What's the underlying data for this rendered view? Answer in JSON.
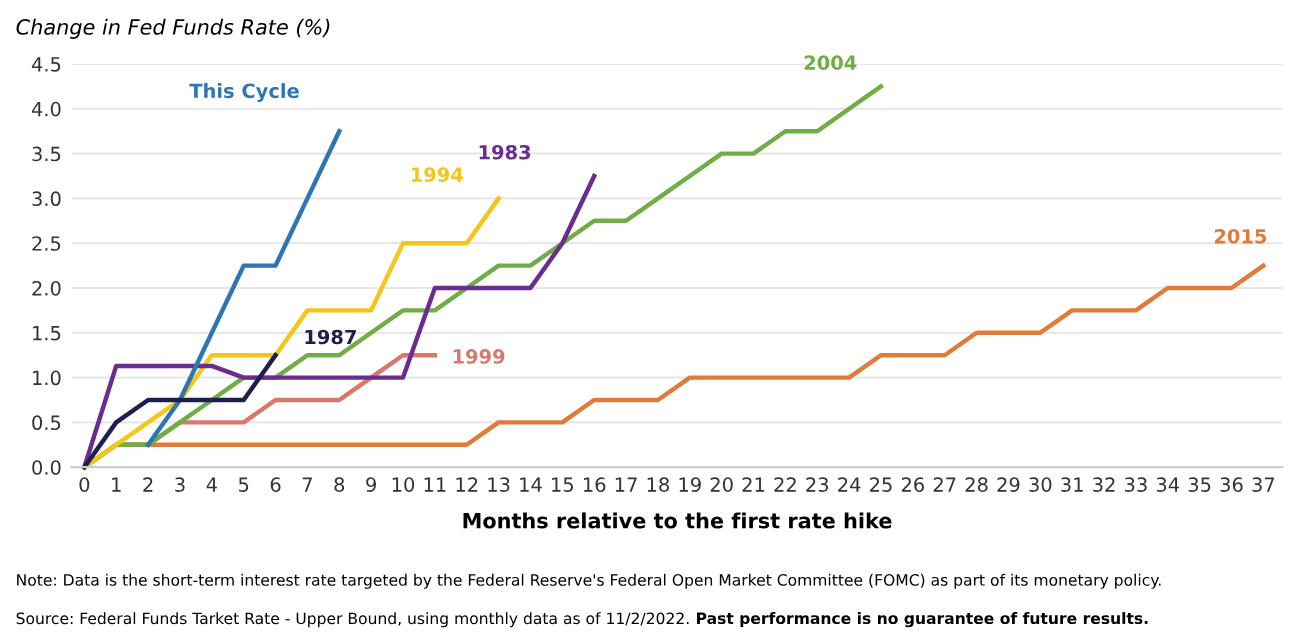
{
  "chart_data": {
    "type": "line",
    "ylabel": "Change in Fed Funds Rate (%)",
    "xlabel": "Months relative to the first rate hike",
    "xlim": [
      -0.4,
      37.6
    ],
    "ylim": [
      0,
      4.5
    ],
    "xticks": [
      0,
      1,
      2,
      3,
      4,
      5,
      6,
      7,
      8,
      9,
      10,
      11,
      12,
      13,
      14,
      15,
      16,
      17,
      18,
      19,
      20,
      21,
      22,
      23,
      24,
      25,
      26,
      27,
      28,
      29,
      30,
      31,
      32,
      33,
      34,
      35,
      36,
      37
    ],
    "yticks": [
      {
        "value": 0,
        "label": "0.0"
      },
      {
        "value": 0.5,
        "label": "0.5"
      },
      {
        "value": 1,
        "label": "1.0"
      },
      {
        "value": 1.5,
        "label": "1.5"
      },
      {
        "value": 2,
        "label": "2.0"
      },
      {
        "value": 2.5,
        "label": "2.5"
      },
      {
        "value": 3,
        "label": "3.0"
      },
      {
        "value": 3.5,
        "label": "3.5"
      },
      {
        "value": 4,
        "label": "4.0"
      },
      {
        "value": 4.5,
        "label": "4.5"
      }
    ],
    "grid": "y",
    "legend": false,
    "marker": "none",
    "line_style": "solid",
    "series": [
      {
        "name": "2015",
        "color": "#e07b39",
        "x": [
          0,
          1,
          2,
          3,
          4,
          5,
          6,
          7,
          8,
          9,
          10,
          11,
          12,
          13,
          14,
          15,
          16,
          17,
          18,
          19,
          20,
          21,
          22,
          23,
          24,
          25,
          26,
          27,
          28,
          29,
          30,
          31,
          32,
          33,
          34,
          35,
          36,
          37
        ],
        "values": [
          0,
          0.25,
          0.25,
          0.25,
          0.25,
          0.25,
          0.25,
          0.25,
          0.25,
          0.25,
          0.25,
          0.25,
          0.25,
          0.5,
          0.5,
          0.5,
          0.75,
          0.75,
          0.75,
          1.0,
          1.0,
          1.0,
          1.0,
          1.0,
          1.0,
          1.25,
          1.25,
          1.25,
          1.5,
          1.5,
          1.5,
          1.75,
          1.75,
          1.75,
          2.0,
          2.0,
          2.0,
          2.25
        ]
      },
      {
        "name": "1999",
        "color": "#d9776b",
        "x": [
          0,
          1,
          2,
          3,
          4,
          5,
          6,
          7,
          8,
          9,
          10,
          11
        ],
        "values": [
          0,
          0.25,
          0.25,
          0.5,
          0.5,
          0.5,
          0.75,
          0.75,
          0.75,
          1.0,
          1.25,
          1.25
        ]
      },
      {
        "name": "2004",
        "color": "#70ad47",
        "x": [
          0,
          1,
          2,
          3,
          4,
          5,
          6,
          7,
          8,
          9,
          10,
          11,
          12,
          13,
          14,
          15,
          16,
          17,
          18,
          19,
          20,
          21,
          22,
          23,
          24,
          25
        ],
        "values": [
          0,
          0.25,
          0.25,
          0.5,
          0.75,
          1.0,
          1.0,
          1.25,
          1.25,
          1.5,
          1.75,
          1.75,
          2.0,
          2.25,
          2.25,
          2.5,
          2.75,
          2.75,
          3.0,
          3.25,
          3.5,
          3.5,
          3.75,
          3.75,
          4.0,
          4.25
        ]
      },
      {
        "name": "1994",
        "color": "#f5c518",
        "x": [
          0,
          1,
          2,
          3,
          4,
          5,
          6,
          7,
          8,
          9,
          10,
          11,
          12,
          13
        ],
        "values": [
          0,
          0.25,
          0.5,
          0.75,
          1.25,
          1.25,
          1.25,
          1.75,
          1.75,
          1.75,
          2.5,
          2.5,
          2.5,
          3.0
        ]
      },
      {
        "name": "1983",
        "color": "#6a2c91",
        "x": [
          0,
          1,
          2,
          3,
          4,
          5,
          6,
          7,
          8,
          9,
          10,
          11,
          12,
          13,
          14,
          15,
          16
        ],
        "values": [
          0,
          1.13,
          1.13,
          1.13,
          1.13,
          1.0,
          1.0,
          1.0,
          1.0,
          1.0,
          1.0,
          2.0,
          2.0,
          2.0,
          2.0,
          2.5,
          3.25
        ]
      },
      {
        "name": "This Cycle",
        "color": "#2e75b6",
        "x": [
          2,
          3,
          4,
          5,
          6,
          7,
          8
        ],
        "values": [
          0.25,
          0.75,
          1.5,
          2.25,
          2.25,
          3.0,
          3.75
        ]
      },
      {
        "name": "1987",
        "color": "#1f1f4f",
        "x": [
          0,
          1,
          2,
          3,
          4,
          5,
          6
        ],
        "values": [
          0,
          0.5,
          0.75,
          0.75,
          0.75,
          0.75,
          1.25
        ]
      }
    ],
    "annotations": [
      "Note: Data is the short-term interest rate targeted by the Federal Reserve's Federal Open Market Committee (FOMC) as part of its monetary policy.",
      "Source: Federal Funds Tarket Rate - Upper Bound, using monthly data as of 11/2/2022.",
      "Past performance is no guarantee of future results."
    ]
  }
}
